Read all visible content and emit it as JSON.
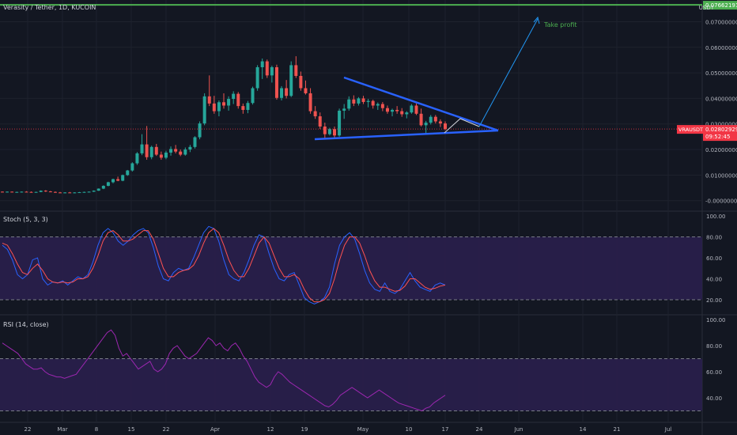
{
  "header": {
    "title": "Verasity / Tether, 1D, KUCOIN",
    "currency": "USDT"
  },
  "colors": {
    "background": "#131722",
    "grid": "#1e222d",
    "up": "#26a69a",
    "down": "#ef5350",
    "take_profit": "#4caf50",
    "trendline": "#2962ff",
    "projection": "#2196f3",
    "stoch_k": "#2962ff",
    "stoch_d": "#ff5252",
    "band_fill": "#2a1f4d",
    "rsi_line": "#9c27b0",
    "price_label": "#f23645"
  },
  "price_axis": {
    "ticks": [
      "0.07000000",
      "0.06000000",
      "0.05000000",
      "0.04000000",
      "0.03000000",
      "0.02000000",
      "0.01000000",
      "-0.00000000"
    ],
    "take_profit_label": "0.07662191",
    "symbol_label": "VRAUSDT",
    "last_price_label": "0.02802929",
    "countdown_label": "09:52:45"
  },
  "annotations": {
    "take_profit_text": "Take profit"
  },
  "stoch": {
    "title": "Stoch (5, 3, 3)",
    "ticks": [
      "100.00",
      "80.00",
      "60.00",
      "40.00",
      "20.00"
    ]
  },
  "rsi": {
    "title": "RSI (14, close)",
    "ticks": [
      "100.00",
      "80.00",
      "60.00",
      "40.00"
    ]
  },
  "time_axis": {
    "ticks": [
      "22",
      "Mar",
      "8",
      "15",
      "22",
      "Apr",
      "12",
      "19",
      "May",
      "10",
      "17",
      "24",
      "Jun",
      "14",
      "21",
      "Jul"
    ]
  },
  "chart_data": [
    {
      "type": "candlestick",
      "title": "Verasity / Tether, 1D, KUCOIN",
      "ylim": [
        -0.0035,
        0.0785
      ],
      "take_profit": 0.07662191,
      "last_price": 0.02802929,
      "candles": [
        [
          0.0035,
          0.0036,
          0.0033,
          0.0034
        ],
        [
          0.0034,
          0.0036,
          0.0032,
          0.0035
        ],
        [
          0.0035,
          0.0036,
          0.0033,
          0.0033
        ],
        [
          0.0033,
          0.0035,
          0.0031,
          0.0034
        ],
        [
          0.0034,
          0.0036,
          0.0032,
          0.0035
        ],
        [
          0.0035,
          0.0037,
          0.0033,
          0.0034
        ],
        [
          0.0034,
          0.0036,
          0.0032,
          0.0033
        ],
        [
          0.0033,
          0.0035,
          0.0031,
          0.0034
        ],
        [
          0.0034,
          0.004,
          0.0033,
          0.0039
        ],
        [
          0.0039,
          0.0041,
          0.0034,
          0.0036
        ],
        [
          0.0036,
          0.0038,
          0.0033,
          0.0034
        ],
        [
          0.0034,
          0.0036,
          0.0031,
          0.0032
        ],
        [
          0.0032,
          0.0034,
          0.003,
          0.0031
        ],
        [
          0.0031,
          0.0033,
          0.0029,
          0.0032
        ],
        [
          0.0032,
          0.0034,
          0.003,
          0.0031
        ],
        [
          0.0031,
          0.0033,
          0.0029,
          0.0032
        ],
        [
          0.0032,
          0.0034,
          0.003,
          0.0033
        ],
        [
          0.0033,
          0.0035,
          0.0031,
          0.0034
        ],
        [
          0.0034,
          0.0036,
          0.0032,
          0.0035
        ],
        [
          0.0035,
          0.004,
          0.0034,
          0.0039
        ],
        [
          0.0039,
          0.0048,
          0.0038,
          0.0047
        ],
        [
          0.0047,
          0.006,
          0.0045,
          0.0058
        ],
        [
          0.0058,
          0.0074,
          0.0056,
          0.0072
        ],
        [
          0.0072,
          0.0086,
          0.0068,
          0.0084
        ],
        [
          0.0084,
          0.0094,
          0.0076,
          0.0078
        ],
        [
          0.0078,
          0.0102,
          0.0076,
          0.01
        ],
        [
          0.01,
          0.012,
          0.0097,
          0.0118
        ],
        [
          0.0118,
          0.015,
          0.0114,
          0.0146
        ],
        [
          0.0146,
          0.019,
          0.014,
          0.0185
        ],
        [
          0.0185,
          0.026,
          0.0178,
          0.022
        ],
        [
          0.022,
          0.0292,
          0.016,
          0.017
        ],
        [
          0.017,
          0.0215,
          0.0162,
          0.021
        ],
        [
          0.021,
          0.0222,
          0.0175,
          0.018
        ],
        [
          0.018,
          0.0192,
          0.016,
          0.0168
        ],
        [
          0.0168,
          0.0195,
          0.0162,
          0.0188
        ],
        [
          0.0188,
          0.0212,
          0.0176,
          0.0202
        ],
        [
          0.0202,
          0.0218,
          0.0185,
          0.0192
        ],
        [
          0.0192,
          0.02,
          0.0174,
          0.018
        ],
        [
          0.018,
          0.0208,
          0.0176,
          0.02
        ],
        [
          0.02,
          0.0218,
          0.019,
          0.021
        ],
        [
          0.021,
          0.0252,
          0.0204,
          0.0248
        ],
        [
          0.0248,
          0.031,
          0.024,
          0.0302
        ],
        [
          0.0302,
          0.042,
          0.0295,
          0.0408
        ],
        [
          0.0408,
          0.049,
          0.037,
          0.038
        ],
        [
          0.038,
          0.041,
          0.034,
          0.035
        ],
        [
          0.035,
          0.0392,
          0.033,
          0.0385
        ],
        [
          0.0385,
          0.042,
          0.036,
          0.0372
        ],
        [
          0.0372,
          0.0408,
          0.0352,
          0.0398
        ],
        [
          0.0398,
          0.0428,
          0.0378,
          0.0418
        ],
        [
          0.0418,
          0.0425,
          0.036,
          0.037
        ],
        [
          0.037,
          0.038,
          0.034,
          0.0355
        ],
        [
          0.0355,
          0.039,
          0.0342,
          0.0382
        ],
        [
          0.0382,
          0.0446,
          0.0376,
          0.044
        ],
        [
          0.044,
          0.053,
          0.043,
          0.0522
        ],
        [
          0.0522,
          0.0556,
          0.0476,
          0.0545
        ],
        [
          0.0545,
          0.0552,
          0.048,
          0.049
        ],
        [
          0.049,
          0.0528,
          0.0462,
          0.0522
        ],
        [
          0.0522,
          0.0532,
          0.0395,
          0.0402
        ],
        [
          0.0402,
          0.0448,
          0.0392,
          0.044
        ],
        [
          0.044,
          0.0472,
          0.04,
          0.041
        ],
        [
          0.041,
          0.0545,
          0.0405,
          0.053
        ],
        [
          0.053,
          0.0565,
          0.048,
          0.0488
        ],
        [
          0.0488,
          0.0505,
          0.043,
          0.044
        ],
        [
          0.044,
          0.047,
          0.0415,
          0.042
        ],
        [
          0.042,
          0.044,
          0.034,
          0.035
        ],
        [
          0.035,
          0.037,
          0.032,
          0.033
        ],
        [
          0.033,
          0.0345,
          0.028,
          0.029
        ],
        [
          0.029,
          0.0305,
          0.0245,
          0.026
        ],
        [
          0.026,
          0.0285,
          0.0255,
          0.028
        ],
        [
          0.028,
          0.029,
          0.0245,
          0.0255
        ],
        [
          0.0255,
          0.036,
          0.025,
          0.0352
        ],
        [
          0.0352,
          0.0378,
          0.032,
          0.036
        ],
        [
          0.036,
          0.0408,
          0.0352,
          0.0396
        ],
        [
          0.0396,
          0.0412,
          0.037,
          0.038
        ],
        [
          0.038,
          0.0405,
          0.0372,
          0.04
        ],
        [
          0.04,
          0.041,
          0.0378,
          0.0386
        ],
        [
          0.0386,
          0.0398,
          0.0365,
          0.039
        ],
        [
          0.039,
          0.0395,
          0.036,
          0.0372
        ],
        [
          0.0372,
          0.0384,
          0.0355,
          0.0378
        ],
        [
          0.0378,
          0.0386,
          0.035,
          0.0362
        ],
        [
          0.0362,
          0.0372,
          0.034,
          0.0348
        ],
        [
          0.0348,
          0.036,
          0.033,
          0.0355
        ],
        [
          0.0355,
          0.037,
          0.034,
          0.035
        ],
        [
          0.035,
          0.0362,
          0.0328,
          0.0338
        ],
        [
          0.0338,
          0.035,
          0.0322,
          0.0345
        ],
        [
          0.0345,
          0.0378,
          0.034,
          0.0372
        ],
        [
          0.0372,
          0.038,
          0.0335,
          0.034
        ],
        [
          0.034,
          0.036,
          0.029,
          0.0295
        ],
        [
          0.0295,
          0.0312,
          0.0262,
          0.0305
        ],
        [
          0.0305,
          0.0335,
          0.0298,
          0.0328
        ],
        [
          0.0328,
          0.0335,
          0.0302,
          0.031
        ],
        [
          0.031,
          0.0318,
          0.0288,
          0.0302
        ],
        [
          0.0302,
          0.031,
          0.0276,
          0.028
        ]
      ]
    },
    {
      "type": "line",
      "title": "Stoch (5, 3, 3)",
      "ylim": [
        0,
        100
      ],
      "band": [
        20,
        80
      ],
      "series": [
        {
          "values": [
            72,
            68,
            58,
            44,
            40,
            44,
            58,
            60,
            40,
            34,
            37,
            36,
            38,
            34,
            38,
            42,
            40,
            44,
            56,
            72,
            84,
            88,
            84,
            76,
            72,
            76,
            82,
            86,
            88,
            84,
            70,
            52,
            40,
            38,
            46,
            50,
            48,
            50,
            60,
            72,
            84,
            90,
            88,
            76,
            58,
            44,
            40,
            38,
            46,
            58,
            72,
            82,
            80,
            64,
            50,
            40,
            38,
            44,
            46,
            34,
            22,
            18,
            16,
            18,
            22,
            32,
            54,
            72,
            80,
            84,
            78,
            64,
            48,
            36,
            30,
            28,
            36,
            28,
            26,
            30,
            38,
            46,
            38,
            32,
            30,
            28,
            34,
            36,
            34
          ]
        },
        {
          "values": [
            74,
            72,
            64,
            54,
            46,
            44,
            50,
            54,
            48,
            40,
            37,
            36,
            37,
            36,
            37,
            40,
            40,
            42,
            50,
            62,
            76,
            84,
            86,
            82,
            76,
            76,
            78,
            82,
            86,
            86,
            78,
            64,
            50,
            42,
            42,
            46,
            48,
            49,
            53,
            62,
            74,
            84,
            88,
            84,
            72,
            58,
            48,
            42,
            42,
            50,
            62,
            74,
            80,
            74,
            62,
            50,
            42,
            42,
            44,
            40,
            30,
            22,
            18,
            18,
            20,
            26,
            40,
            58,
            72,
            80,
            80,
            74,
            62,
            48,
            38,
            32,
            32,
            30,
            28,
            29,
            33,
            40,
            40,
            36,
            32,
            30,
            31,
            33,
            34
          ]
        }
      ]
    },
    {
      "type": "line",
      "title": "RSI (14, close)",
      "ylim": [
        25,
        100
      ],
      "band": [
        30,
        70
      ],
      "series": [
        {
          "values": [
            82,
            80,
            78,
            76,
            74,
            70,
            66,
            64,
            62,
            62,
            63,
            60,
            58,
            57,
            56,
            56,
            55,
            56,
            57,
            58,
            62,
            66,
            70,
            74,
            78,
            82,
            86,
            90,
            92,
            88,
            78,
            72,
            74,
            70,
            66,
            62,
            64,
            66,
            68,
            62,
            60,
            62,
            66,
            74,
            78,
            80,
            76,
            72,
            70,
            72,
            74,
            78,
            82,
            86,
            84,
            80,
            82,
            78,
            76,
            80,
            82,
            78,
            72,
            68,
            62,
            56,
            52,
            50,
            48,
            50,
            56,
            60,
            58,
            55,
            52,
            50,
            48,
            46,
            44,
            42,
            40,
            38,
            36,
            34,
            33,
            35,
            38,
            42,
            44,
            46,
            48,
            46,
            44,
            42,
            40,
            42,
            44,
            46,
            44,
            42,
            40,
            38,
            36,
            35,
            34,
            33,
            32,
            31,
            30,
            32,
            33,
            36,
            38,
            40,
            42
          ]
        }
      ]
    }
  ]
}
